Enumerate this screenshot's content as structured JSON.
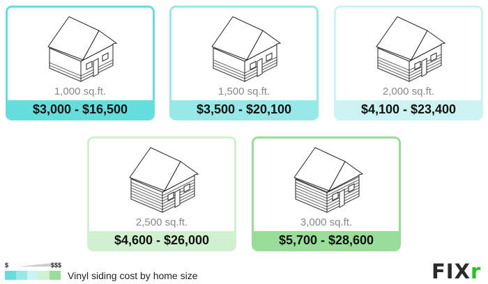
{
  "cards": [
    {
      "size": "1,000 sq.ft.",
      "price": "$3,000 - $16,500",
      "color": "#66dddd"
    },
    {
      "size": "1,500 sq.ft.",
      "price": "$3,500 - $20,100",
      "color": "#99e8e8"
    },
    {
      "size": "2,000 sq.ft.",
      "price": "$4,100 - $23,400",
      "color": "#ccf3f2"
    },
    {
      "size": "2,500 sq.ft.",
      "price": "$4,600 - $26,000",
      "color": "#d0f0cf"
    },
    {
      "size": "3,000 sq.ft.",
      "price": "$5,700 - $28,600",
      "color": "#99dd99"
    }
  ],
  "legend": {
    "low": "$",
    "high": "$$$",
    "caption": "Vinyl siding cost by home size",
    "colors": [
      "#66dddd",
      "#99e8e8",
      "#ccf3f2",
      "#d0f0cf",
      "#99dd99"
    ]
  },
  "logo": {
    "text": "FIX",
    "accent": "r",
    "icon": "house-icon"
  }
}
